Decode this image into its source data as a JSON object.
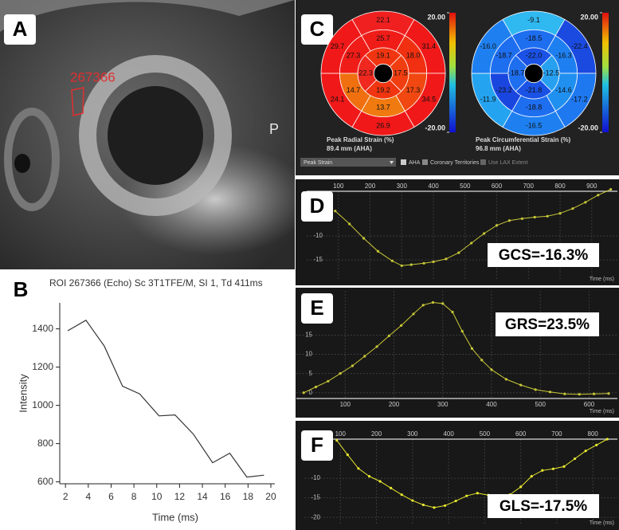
{
  "panel_a": {
    "label": "A",
    "roi_label": "267366",
    "orientation_label": "P"
  },
  "panel_c": {
    "label": "C",
    "strain_menu": "Peak Strain",
    "aha_option": "AHA",
    "coronary_option": "Coronary Territories",
    "lax_option": "Use LAX Extent"
  },
  "chart_data": [
    {
      "type": "line",
      "panel_label": "B",
      "title": "ROI 267366 (Echo) Sc 3T1TFE/M, SI 1, Td 411ms",
      "x_label": "Time (ms)",
      "y_label": "Intensity",
      "x": [
        2.2,
        3.8,
        5.4,
        7.0,
        8.5,
        10.2,
        11.6,
        13.2,
        14.9,
        16.4,
        17.9,
        19.4
      ],
      "values": [
        1390,
        1445,
        1310,
        1100,
        1060,
        945,
        950,
        850,
        700,
        750,
        625,
        635
      ],
      "color": "#333333",
      "markers": false,
      "x_axis": "bottom",
      "grid": false,
      "xlim": [
        1.5,
        20.35
      ],
      "ylim": [
        590,
        1536
      ],
      "xticks": [
        2,
        4,
        6,
        8,
        10,
        12,
        14,
        16,
        18,
        20
      ],
      "yticks": [
        600,
        800,
        1000,
        1200,
        1400
      ]
    },
    {
      "type": "bullseye",
      "title": "Peak Radial Strain (%)",
      "subtitle": "89.4 mm (AHA)",
      "colorbar_lim": [
        -20,
        20
      ],
      "colorbar_ticks": [
        {
          "value": 20,
          "label": "20.00"
        },
        {
          "value": -20,
          "label": "-20.00"
        }
      ],
      "rings": [
        {
          "values": [
            22.1,
            31.4,
            34.5,
            26.9,
            24.1,
            29.7
          ],
          "colors": [
            "#f02020",
            "#f01818",
            "#f01818",
            "#f01818",
            "#f01818",
            "#f01818"
          ]
        },
        {
          "values": [
            25.7,
            18.0,
            17.3,
            13.7,
            14.7,
            27.3
          ],
          "value_labels": [
            "25.7",
            "18.0",
            "17.3",
            "13.7",
            "14.7",
            "27.3"
          ],
          "colors": [
            "#f01c18",
            "#f03010",
            "#f04810",
            "#f07a10",
            "#f07010",
            "#f01c18"
          ]
        },
        {
          "values": [
            19.1,
            17.5,
            19.2,
            22.3
          ],
          "colors": [
            "#f03510",
            "#f03e10",
            "#f03510",
            "#f02820"
          ]
        }
      ]
    },
    {
      "type": "bullseye",
      "title": "Peak Circumferential Strain (%)",
      "subtitle": "96.8 mm (AHA)",
      "colorbar_lim": [
        -20,
        20
      ],
      "colorbar_ticks": [
        {
          "value": 20,
          "label": "20.00"
        },
        {
          "value": -20,
          "label": "-20.00"
        }
      ],
      "rings": [
        {
          "values": [
            -9.1,
            -22.4,
            -17.2,
            -16.5,
            -11.9,
            -16.0
          ],
          "value_labels": [
            "-9.1",
            "-22.4",
            "-17.2",
            "-16.5",
            "-11.9",
            "-16.0"
          ],
          "colors": [
            "#30b8f0",
            "#1a4ae0",
            "#1e78f0",
            "#1e80f0",
            "#24a4f0",
            "#1e80f0"
          ]
        },
        {
          "values": [
            -18.5,
            -16.3,
            -14.6,
            -18.8,
            -23.2,
            -18.7
          ],
          "colors": [
            "#1e6ef0",
            "#1e80f0",
            "#2090f0",
            "#1e6ef0",
            "#1a46e0",
            "#1e6ef0"
          ]
        },
        {
          "values": [
            -22.0,
            -12.5,
            -21.8,
            -18.7
          ],
          "value_labels": [
            "-22.0",
            "-12.5",
            "-21.8",
            "-18.7"
          ],
          "colors": [
            "#1a52e6",
            "#28a0f0",
            "#1a52e6",
            "#1e6ef0"
          ]
        }
      ]
    },
    {
      "type": "line",
      "panel_label": "D",
      "annotation": "GCS=-16.3%",
      "x_label": "Time (ms)",
      "x": [
        90,
        135,
        180,
        225,
        270,
        300,
        330,
        370,
        400,
        440,
        480,
        520,
        560,
        600,
        640,
        680,
        720,
        760,
        800,
        840,
        880,
        920,
        960
      ],
      "values": [
        -4.8,
        -7.5,
        -10.5,
        -13.2,
        -15.2,
        -16.2,
        -16.0,
        -15.7,
        -15.4,
        -14.8,
        -13.5,
        -11.5,
        -9.5,
        -7.8,
        -6.8,
        -6.4,
        -6.1,
        -5.9,
        -5.3,
        -4.3,
        -3.0,
        -1.5,
        -0.3
      ],
      "color": "#c8c838",
      "markers": true,
      "x_axis": "top",
      "grid": true,
      "xlim": [
        0,
        981
      ],
      "ylim": [
        -19.3,
        -0.7
      ],
      "xticks": [
        100,
        200,
        300,
        400,
        500,
        600,
        700,
        800,
        900
      ],
      "yticks": [
        -10,
        -15
      ]
    },
    {
      "type": "line",
      "panel_label": "E",
      "annotation": "GRS=23.5%",
      "x_label": "Time (ms)",
      "x": [
        15,
        40,
        65,
        90,
        115,
        140,
        165,
        190,
        215,
        240,
        260,
        280,
        300,
        320,
        340,
        360,
        380,
        400,
        430,
        460,
        490,
        520,
        550,
        580,
        610,
        640
      ],
      "values": [
        0,
        1.5,
        3,
        5,
        7,
        9.5,
        12,
        14.8,
        17.5,
        20.5,
        22.8,
        23.5,
        23.2,
        21,
        16,
        11.5,
        8.5,
        6,
        3.5,
        2,
        0.8,
        0.2,
        -0.3,
        -0.4,
        -0.3,
        -0.2
      ],
      "color": "#c8c838",
      "markers": true,
      "x_axis": "bottom",
      "grid": true,
      "xlim": [
        0,
        658
      ],
      "ylim": [
        -1.5,
        26.5
      ],
      "xticks": [
        100,
        200,
        300,
        400,
        500,
        600
      ],
      "yticks": [
        0,
        5,
        10,
        15
      ]
    },
    {
      "type": "line",
      "panel_label": "F",
      "annotation": "GLS=-17.5%",
      "x_label": "Time (ms)",
      "x": [
        90,
        120,
        150,
        180,
        210,
        240,
        270,
        300,
        330,
        360,
        390,
        420,
        450,
        480,
        510,
        540,
        570,
        600,
        630,
        660,
        690,
        720,
        750,
        780,
        810,
        840
      ],
      "values": [
        -0.3,
        -4,
        -7.5,
        -9.5,
        -10.8,
        -12.5,
        -14.2,
        -15.7,
        -16.8,
        -17.5,
        -17.0,
        -15.8,
        -14.5,
        -13.8,
        -14.3,
        -14.6,
        -14.2,
        -12.2,
        -9.5,
        -8.0,
        -7.6,
        -7.0,
        -5.0,
        -3.0,
        -1.5,
        0
      ],
      "color": "#e8e830",
      "markers": true,
      "x_axis": "top",
      "grid": true,
      "xlim": [
        0,
        868
      ],
      "ylim": [
        -21.8,
        0
      ],
      "xticks": [
        100,
        200,
        300,
        400,
        500,
        600,
        700,
        800
      ],
      "yticks": [
        -10,
        -15,
        -20
      ]
    }
  ]
}
